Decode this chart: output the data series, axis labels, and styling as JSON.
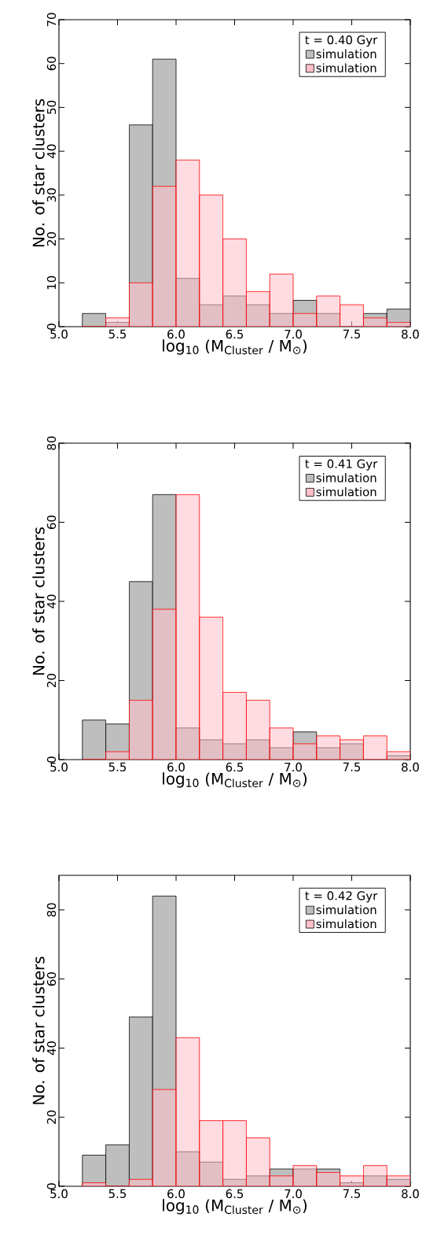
{
  "chart_data": [
    {
      "type": "histogram",
      "bins": [
        5.2,
        5.4,
        5.6,
        5.8,
        6.0,
        6.2,
        6.4,
        6.6,
        6.8,
        7.0,
        7.2,
        7.4,
        7.6,
        7.8,
        8.0
      ],
      "legend_title": "t = 0.40 Gyr",
      "legend": "top right",
      "xlabel": "log$_{10}$ (M$_{Cluster}$ / M$_{⊙}$)",
      "ylabel": "No. of star clusters",
      "xlim": [
        5.0,
        8.0
      ],
      "ylim": [
        0,
        70
      ],
      "xticks": [
        {
          "value": 5.0,
          "label": "5.0"
        },
        {
          "value": 5.5,
          "label": "5.5"
        },
        {
          "value": 6.0,
          "label": "6.0"
        },
        {
          "value": 6.5,
          "label": "6.5"
        },
        {
          "value": 7.0,
          "label": "7.0"
        },
        {
          "value": 7.5,
          "label": "7.5"
        },
        {
          "value": 8.0,
          "label": "8.0"
        }
      ],
      "yticks": [
        0,
        10,
        20,
        30,
        40,
        50,
        60,
        70
      ],
      "series": [
        {
          "name": "simulation",
          "color": "#bebebe",
          "values": [
            3,
            1,
            46,
            61,
            11,
            5,
            7,
            5,
            3,
            6,
            3,
            0,
            3,
            4
          ]
        },
        {
          "name": "simulation",
          "color": "#ffc0cb",
          "values": [
            0,
            2,
            10,
            32,
            38,
            30,
            20,
            8,
            12,
            3,
            7,
            5,
            2,
            1
          ]
        }
      ]
    },
    {
      "type": "histogram",
      "bins": [
        5.2,
        5.4,
        5.6,
        5.8,
        6.0,
        6.2,
        6.4,
        6.6,
        6.8,
        7.0,
        7.2,
        7.4,
        7.6,
        7.8,
        8.0
      ],
      "legend_title": "t = 0.41 Gyr",
      "legend": "top right",
      "xlabel": "log$_{10}$ (M$_{Cluster}$ / M$_{⊙}$)",
      "ylabel": "No. of star clusters",
      "xlim": [
        5.0,
        8.0
      ],
      "ylim": [
        0,
        80
      ],
      "xticks": [
        {
          "value": 5.0,
          "label": "5.0"
        },
        {
          "value": 5.5,
          "label": "5.5"
        },
        {
          "value": 6.0,
          "label": "6.0"
        },
        {
          "value": 6.5,
          "label": "6.5"
        },
        {
          "value": 7.0,
          "label": "7.0"
        },
        {
          "value": 7.5,
          "label": "7.5"
        },
        {
          "value": 8.0,
          "label": "8.0"
        }
      ],
      "yticks": [
        0,
        20,
        40,
        60,
        80
      ],
      "series": [
        {
          "name": "simulation",
          "color": "#bebebe",
          "values": [
            10,
            9,
            45,
            67,
            8,
            5,
            4,
            5,
            3,
            7,
            3,
            4,
            0,
            1
          ]
        },
        {
          "name": "simulation",
          "color": "#ffc0cb",
          "values": [
            0,
            2,
            15,
            38,
            67,
            36,
            17,
            15,
            8,
            4,
            6,
            5,
            6,
            2
          ]
        }
      ]
    },
    {
      "type": "histogram",
      "bins": [
        5.2,
        5.4,
        5.6,
        5.8,
        6.0,
        6.2,
        6.4,
        6.6,
        6.8,
        7.0,
        7.2,
        7.4,
        7.6,
        7.8,
        8.0
      ],
      "legend_title": "t = 0.42 Gyr",
      "legend": "top right",
      "xlabel": "log$_{10}$ (M$_{Cluster}$ / M$_{⊙}$)",
      "ylabel": "No. of star clusters",
      "xlim": [
        5.0,
        8.0
      ],
      "ylim": [
        0,
        90
      ],
      "xticks": [
        {
          "value": 5.0,
          "label": "5.0"
        },
        {
          "value": 5.5,
          "label": "5.5"
        },
        {
          "value": 6.0,
          "label": "6.0"
        },
        {
          "value": 6.5,
          "label": "6.5"
        },
        {
          "value": 7.0,
          "label": "7.0"
        },
        {
          "value": 7.5,
          "label": "7.5"
        },
        {
          "value": 8.0,
          "label": "8.0"
        }
      ],
      "yticks": [
        0,
        20,
        40,
        60,
        80
      ],
      "series": [
        {
          "name": "simulation",
          "color": "#bebebe",
          "values": [
            9,
            12,
            49,
            84,
            10,
            7,
            2,
            3,
            5,
            5,
            5,
            1,
            3,
            2
          ]
        },
        {
          "name": "simulation",
          "color": "#ffc0cb",
          "values": [
            1,
            0,
            2,
            28,
            43,
            19,
            19,
            14,
            3,
            6,
            4,
            3,
            6,
            3
          ]
        }
      ]
    }
  ]
}
